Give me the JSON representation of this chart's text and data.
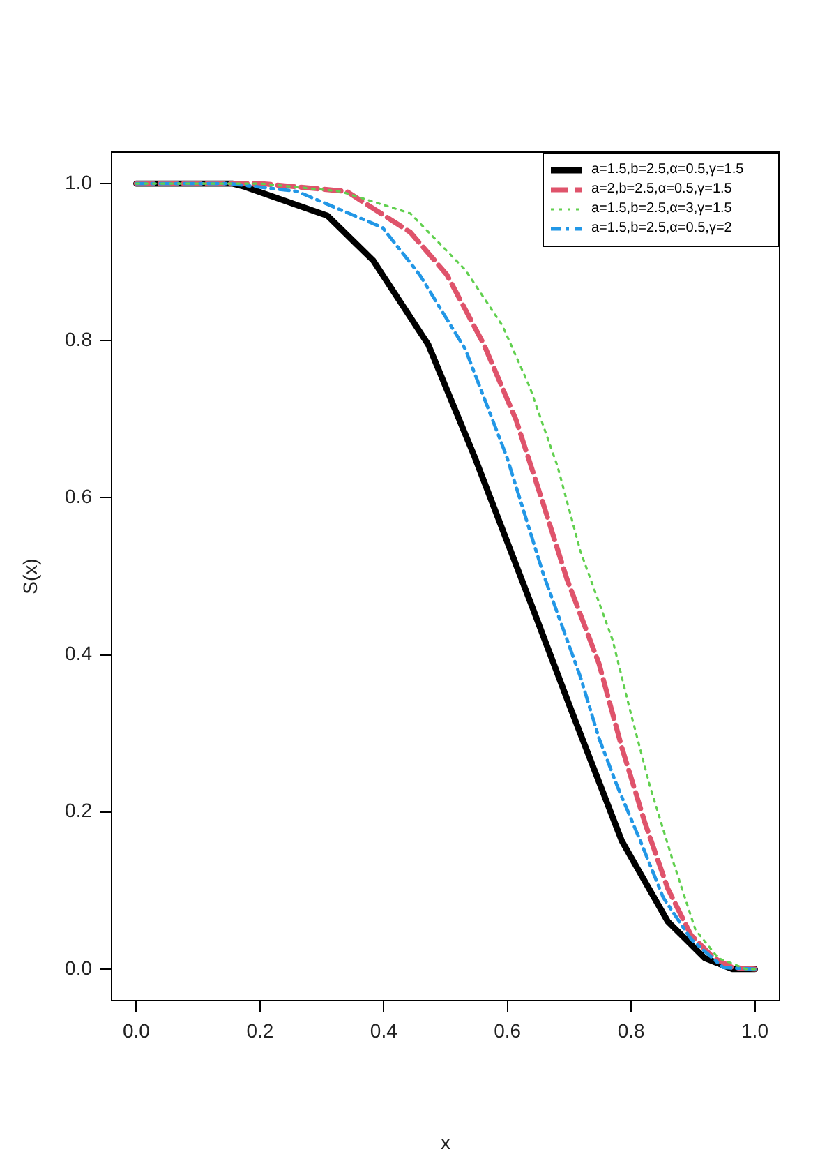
{
  "chart_data": {
    "type": "line",
    "xlabel": "x",
    "ylabel": "S(x)",
    "xlim": [
      -0.04,
      1.04
    ],
    "ylim": [
      -0.04,
      1.04
    ],
    "xticks": [
      {
        "value": 0,
        "label": "0.0"
      },
      {
        "value": 0.2,
        "label": "0.2"
      },
      {
        "value": 0.4,
        "label": "0.4"
      },
      {
        "value": 0.6,
        "label": "0.6"
      },
      {
        "value": 0.8,
        "label": "0.8"
      },
      {
        "value": 1,
        "label": "1.0"
      }
    ],
    "yticks": [
      {
        "value": 0,
        "label": "0.0"
      },
      {
        "value": 0.2,
        "label": "0.2"
      },
      {
        "value": 0.4,
        "label": "0.4"
      },
      {
        "value": 0.6,
        "label": "0.6"
      },
      {
        "value": 0.8,
        "label": "0.8"
      },
      {
        "value": 1,
        "label": "1.0"
      }
    ],
    "grid": false,
    "legend": "top right",
    "marker": "none",
    "series": [
      {
        "name": "a=1.5,b=2.5,α=0.5,γ=1.5",
        "color": "#000000",
        "line_style": "solid",
        "x": [
          0,
          0.155,
          0.175,
          0.309,
          0.383,
          0.472,
          0.547,
          0.643,
          0.703,
          0.785,
          0.859,
          0.919,
          0.964,
          1
        ],
        "values": [
          1,
          1,
          0.996,
          0.959,
          0.902,
          0.795,
          0.652,
          0.455,
          0.33,
          0.163,
          0.061,
          0.014,
          0,
          0
        ]
      },
      {
        "name": "a=2,b=2.5,α=0.5,γ=1.5",
        "color": "#df536b",
        "line_style": "dashed",
        "x": [
          0,
          0.2,
          0.34,
          0.443,
          0.502,
          0.562,
          0.614,
          0.658,
          0.696,
          0.748,
          0.785,
          0.822,
          0.859,
          0.897,
          0.934,
          0.964,
          1
        ],
        "values": [
          1,
          1,
          0.99,
          0.938,
          0.884,
          0.795,
          0.699,
          0.592,
          0.497,
          0.389,
          0.282,
          0.187,
          0.103,
          0.043,
          0.014,
          0.002,
          0
        ]
      },
      {
        "name": "a=1.5,b=2.5,α=3,γ=1.5",
        "color": "#61d04f",
        "line_style": "dotted",
        "x": [
          0,
          0.2,
          0.33,
          0.443,
          0.532,
          0.592,
          0.636,
          0.681,
          0.718,
          0.77,
          0.8,
          0.83,
          0.867,
          0.904,
          0.941,
          0.986,
          1
        ],
        "values": [
          1,
          1,
          0.99,
          0.962,
          0.89,
          0.819,
          0.741,
          0.64,
          0.532,
          0.419,
          0.324,
          0.234,
          0.139,
          0.05,
          0.014,
          0,
          0
        ]
      },
      {
        "name": "a=1.5,b=2.5,α=0.5,γ=2",
        "color": "#2297e6",
        "line_style": "dashdot",
        "x": [
          0,
          0.15,
          0.26,
          0.398,
          0.458,
          0.532,
          0.599,
          0.658,
          0.718,
          0.748,
          0.777,
          0.815,
          0.852,
          0.897,
          0.949,
          1
        ],
        "values": [
          1,
          1,
          0.99,
          0.944,
          0.884,
          0.789,
          0.652,
          0.503,
          0.372,
          0.294,
          0.234,
          0.163,
          0.091,
          0.038,
          0.002,
          0
        ]
      }
    ]
  }
}
